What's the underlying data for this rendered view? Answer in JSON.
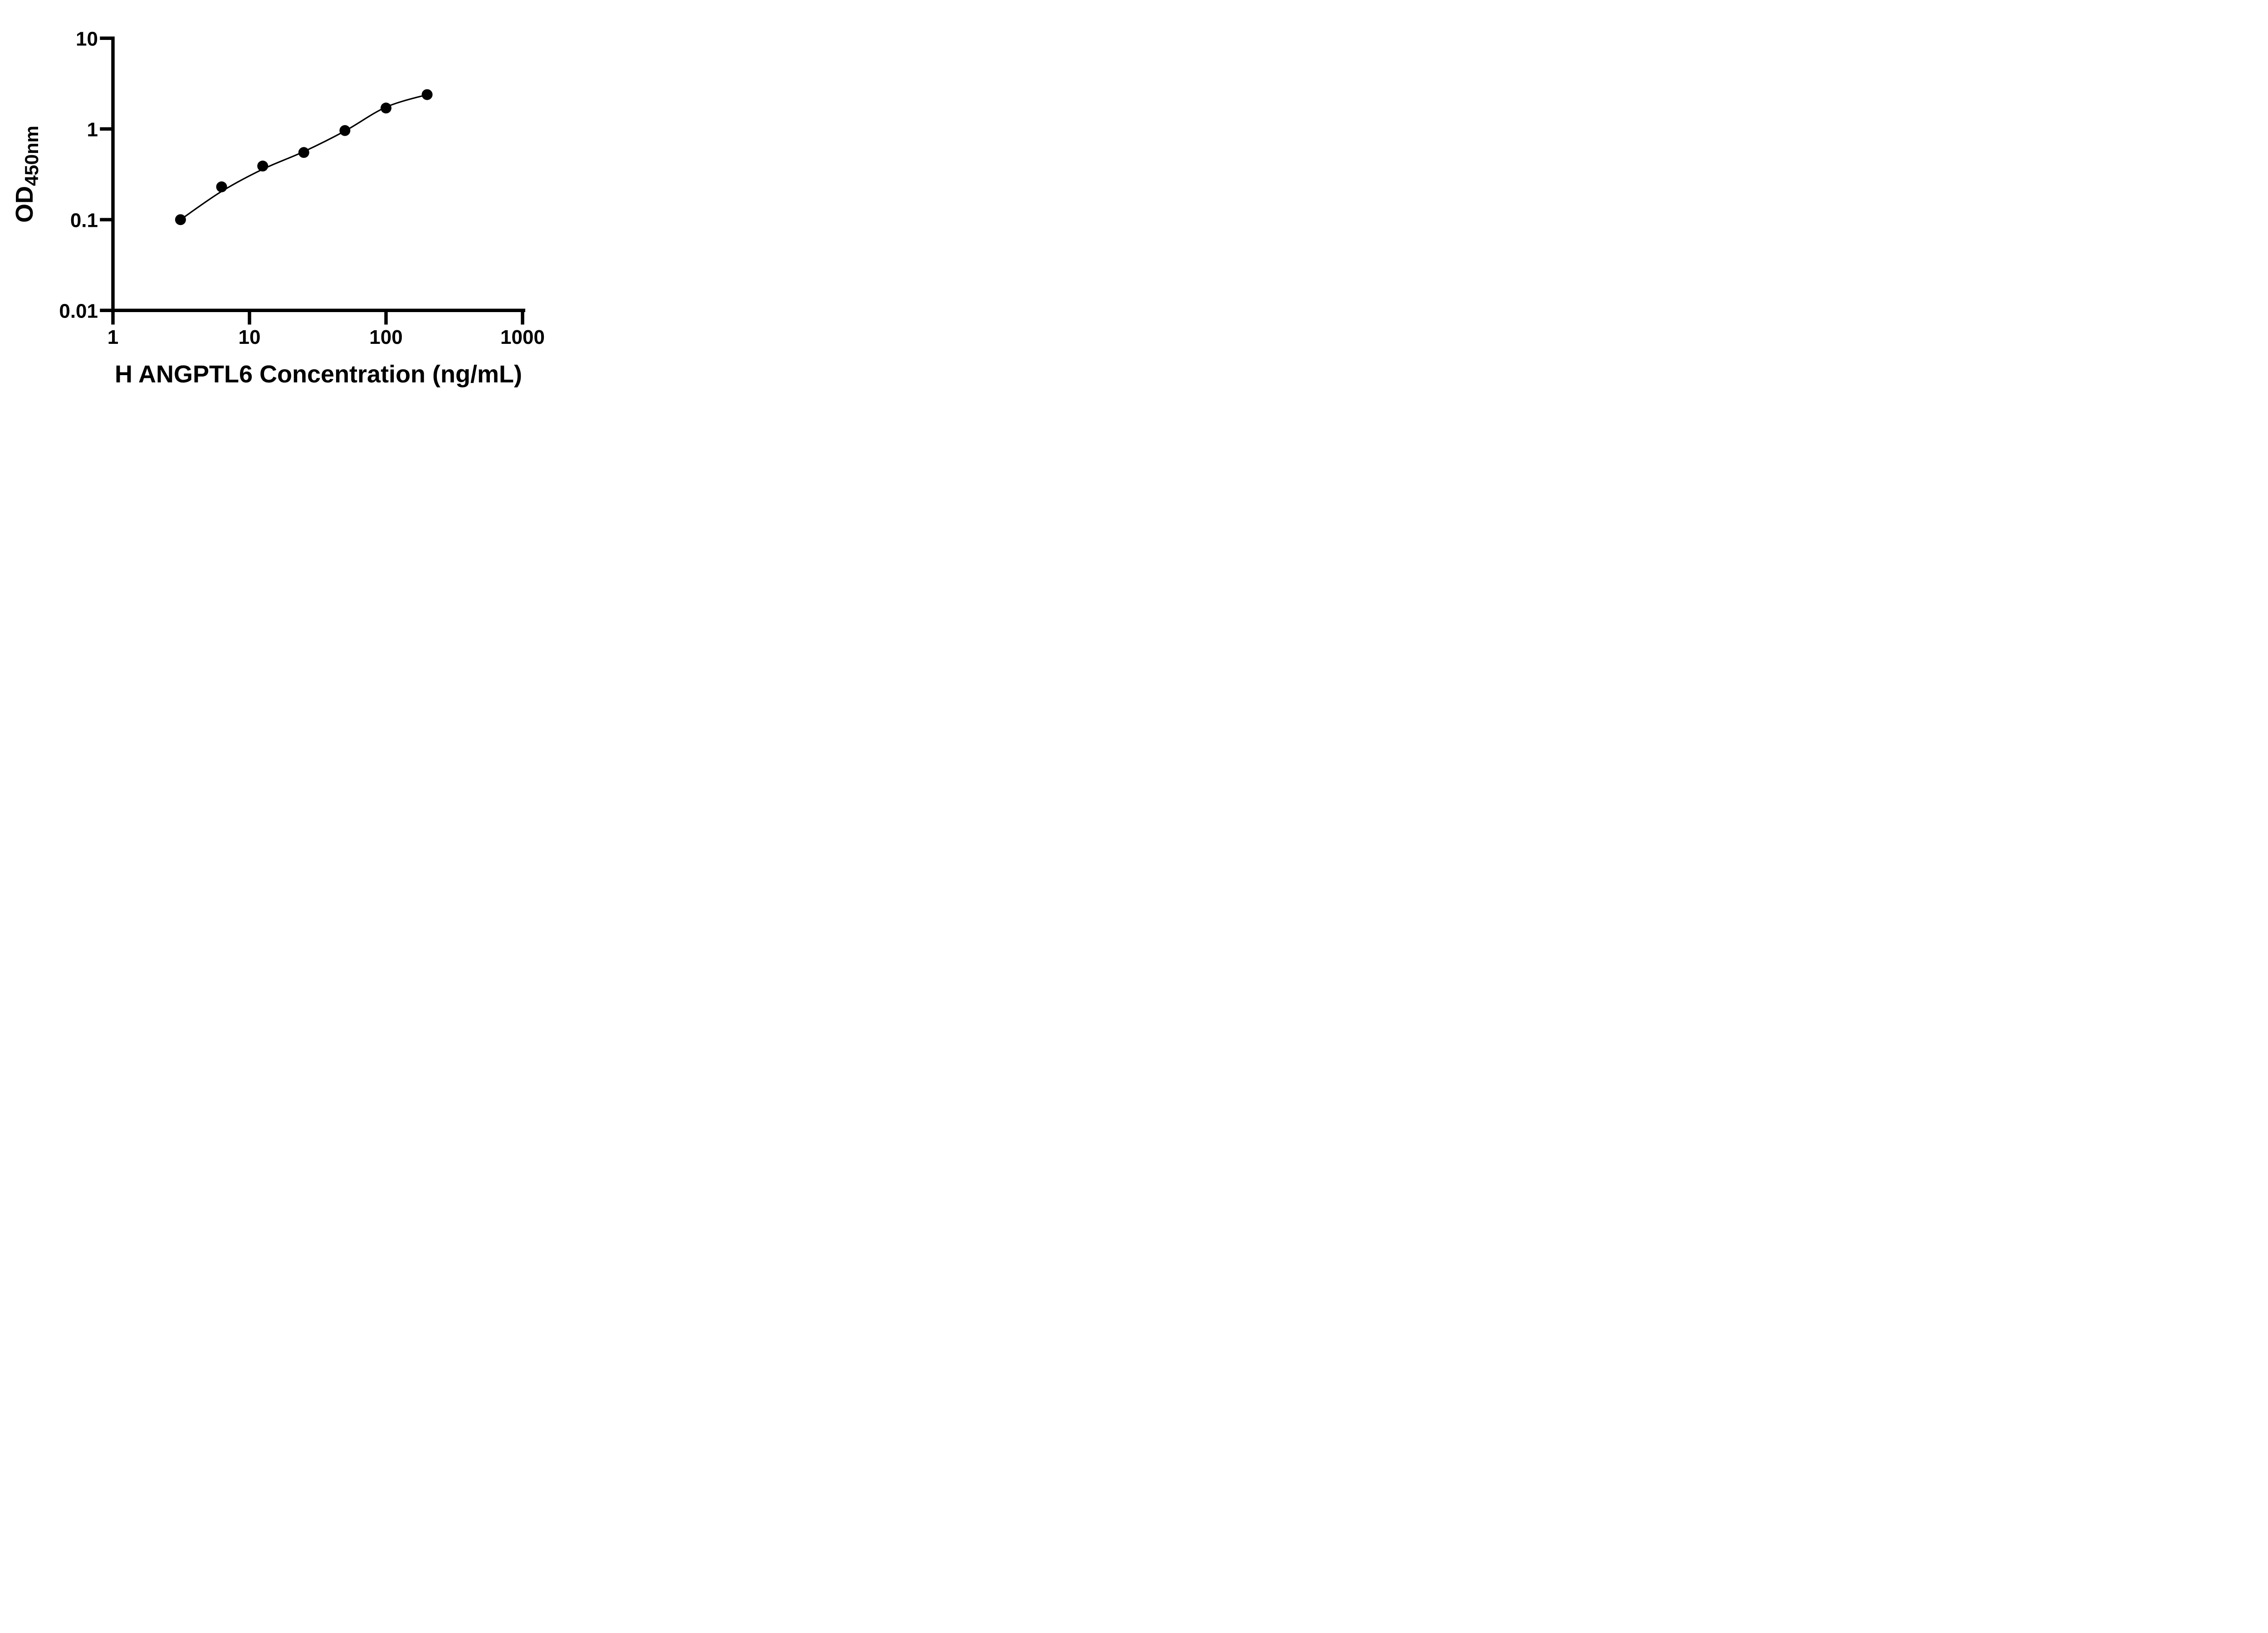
{
  "figure": {
    "background_color": "#ffffff",
    "ink_color": "#000000"
  },
  "chart_data": {
    "type": "scatter",
    "subtype": "elisa-standard-curve",
    "title": "",
    "xlabel": "H ANGPTL6 Concentration (ng/mL)",
    "ylabel_main": "OD",
    "ylabel_sub": "450nm",
    "x_scale": "log10",
    "y_scale": "log10",
    "xlim": [
      1,
      1000
    ],
    "ylim": [
      0.01,
      10
    ],
    "x_ticks": [
      1,
      10,
      100,
      1000
    ],
    "y_ticks": [
      10,
      1,
      0.1,
      0.01
    ],
    "x_tick_labels": [
      "1",
      "10",
      "100",
      "1000"
    ],
    "y_tick_labels": [
      "10",
      "1",
      "0.1",
      "0.01"
    ],
    "grid": false,
    "legend": false,
    "marker_color": "#000000",
    "line_color": "#000000",
    "series": [
      {
        "name": "standard-curve",
        "marker": "circle",
        "fit_line": true,
        "points": [
          {
            "x": 3.125,
            "y": 0.1
          },
          {
            "x": 6.25,
            "y": 0.23
          },
          {
            "x": 12.5,
            "y": 0.39
          },
          {
            "x": 25,
            "y": 0.55
          },
          {
            "x": 50,
            "y": 0.96
          },
          {
            "x": 100,
            "y": 1.7
          },
          {
            "x": 200,
            "y": 2.39
          }
        ]
      }
    ]
  }
}
